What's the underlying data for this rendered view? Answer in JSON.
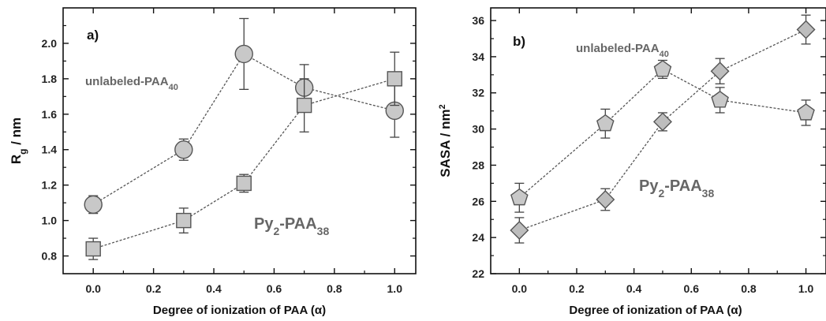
{
  "chart_data": [
    {
      "type": "line",
      "panel_label": "a)",
      "xlabel": "Degree of ionization of PAA (α)",
      "ylabel_main": "R",
      "ylabel_sub": "g",
      "ylabel_rest": " / nm",
      "xlim": [
        -0.1,
        1.07
      ],
      "ylim": [
        0.7,
        2.2
      ],
      "x_ticks": [
        "0.0",
        "0.2",
        "0.4",
        "0.6",
        "0.8",
        "1.0"
      ],
      "y_ticks": [
        "0.8",
        "1.0",
        "1.2",
        "1.4",
        "1.6",
        "1.8",
        "2.0"
      ],
      "grid": false,
      "annotations": {
        "unlabeled": {
          "main": "unlabeled-PAA",
          "sub": "40"
        },
        "py": {
          "part1": "Py",
          "sub1": "2",
          "part2": "-PAA",
          "sub2": "38"
        }
      },
      "series": [
        {
          "marker": "circle",
          "color": "#c8c8c8",
          "x": [
            0.0,
            0.3,
            0.5,
            0.7,
            1.0
          ],
          "y": [
            1.09,
            1.4,
            1.94,
            1.75,
            1.62
          ],
          "err": [
            0.05,
            0.06,
            0.2,
            0.13,
            0.15
          ]
        },
        {
          "marker": "square",
          "color": "#c8c8c8",
          "x": [
            0.0,
            0.3,
            0.5,
            0.7,
            1.0
          ],
          "y": [
            0.84,
            1.0,
            1.21,
            1.65,
            1.8
          ],
          "err": [
            0.06,
            0.07,
            0.05,
            0.15,
            0.15
          ]
        }
      ]
    },
    {
      "type": "line",
      "panel_label": "b)",
      "xlabel": "Degree of ionization of PAA (α)",
      "ylabel_main": "SASA / nm",
      "ylabel_sup": "2",
      "xlim": [
        -0.1,
        1.07
      ],
      "ylim": [
        22,
        36.7
      ],
      "x_ticks": [
        "0.0",
        "0.2",
        "0.4",
        "0.6",
        "0.8",
        "1.0"
      ],
      "y_ticks": [
        "22",
        "24",
        "26",
        "28",
        "30",
        "32",
        "34",
        "36"
      ],
      "grid": false,
      "annotations": {
        "unlabeled": {
          "main": "unlabeled-PAA",
          "sub": "40"
        },
        "py": {
          "part1": "Py",
          "sub1": "2",
          "part2": "-PAA",
          "sub2": "38"
        }
      },
      "series": [
        {
          "marker": "pentagon",
          "color": "#c8c8c8",
          "x": [
            0.0,
            0.3,
            0.5,
            0.7,
            1.0
          ],
          "y": [
            26.2,
            30.3,
            33.3,
            31.6,
            30.9
          ],
          "err": [
            0.8,
            0.8,
            0.5,
            0.7,
            0.7
          ]
        },
        {
          "marker": "diamond",
          "color": "#bdbdbd",
          "x": [
            0.0,
            0.3,
            0.5,
            0.7,
            1.0
          ],
          "y": [
            24.4,
            26.1,
            30.4,
            33.2,
            35.5
          ],
          "err": [
            0.7,
            0.6,
            0.5,
            0.7,
            0.8
          ]
        }
      ]
    }
  ]
}
